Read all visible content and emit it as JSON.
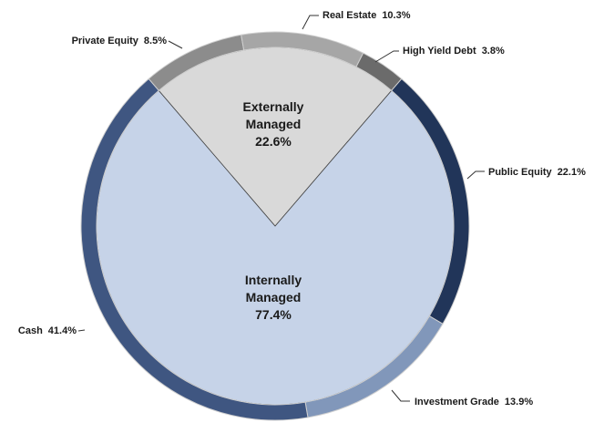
{
  "chart_data": {
    "type": "pie",
    "inner": {
      "categories": [
        "Externally Managed",
        "Internally Managed"
      ],
      "values": [
        22.6,
        77.4
      ],
      "value_labels": [
        "22.6%",
        "77.4%"
      ],
      "colors": [
        "#d9d9d9",
        "#c6d3e8"
      ]
    },
    "outer": {
      "categories": [
        "Private Equity",
        "Real Estate",
        "High Yield Debt",
        "Public Equity",
        "Investment Grade",
        "Cash"
      ],
      "values": [
        8.5,
        10.3,
        3.8,
        22.1,
        13.9,
        41.4
      ],
      "value_labels": [
        "8.5%",
        "10.3%",
        "3.8%",
        "22.1%",
        "13.9%",
        "41.4%"
      ],
      "colors": [
        "#8c8c8c",
        "#a6a6a6",
        "#6b6b6b",
        "#213559",
        "#8197ba",
        "#3f5681"
      ]
    }
  }
}
